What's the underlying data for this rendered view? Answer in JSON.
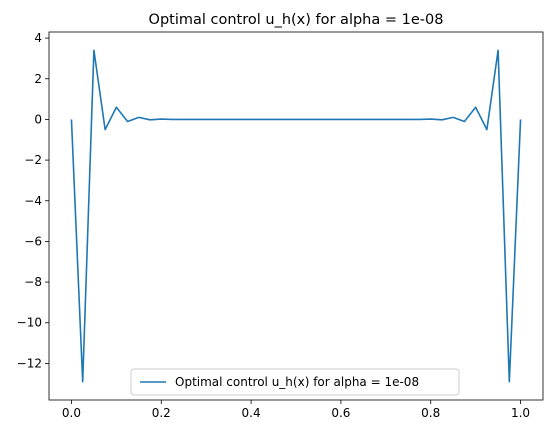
{
  "chart_data": {
    "type": "line",
    "title": "Optimal control u_h(x) for alpha = 1e-08",
    "xlabel": "",
    "ylabel": "",
    "xlim": [
      -0.05,
      1.05
    ],
    "ylim": [
      -13.8,
      4.3
    ],
    "xticks": [
      0.0,
      0.2,
      0.4,
      0.6,
      0.8,
      1.0
    ],
    "xtick_labels": [
      "0.0",
      "0.2",
      "0.4",
      "0.6",
      "0.8",
      "1.0"
    ],
    "yticks": [
      4,
      2,
      0,
      -2,
      -4,
      -6,
      -8,
      -10,
      -12
    ],
    "ytick_labels": [
      "4",
      "2",
      "0",
      "−2",
      "−4",
      "−6",
      "−8",
      "−10",
      "−12"
    ],
    "grid": false,
    "legend_position": "lower-center",
    "series": [
      {
        "name": "Optimal control u_h(x) for alpha = 1e-08",
        "color": "#1f77b4",
        "x": [
          0.0,
          0.025,
          0.05,
          0.075,
          0.1,
          0.125,
          0.15,
          0.175,
          0.2,
          0.225,
          0.25,
          0.275,
          0.3,
          0.325,
          0.35,
          0.375,
          0.4,
          0.425,
          0.45,
          0.475,
          0.5,
          0.525,
          0.55,
          0.575,
          0.6,
          0.625,
          0.65,
          0.675,
          0.7,
          0.725,
          0.75,
          0.775,
          0.8,
          0.825,
          0.85,
          0.875,
          0.9,
          0.925,
          0.95,
          0.975,
          1.0
        ],
        "y": [
          0.0,
          -12.9,
          3.4,
          -0.5,
          0.6,
          -0.1,
          0.1,
          -0.02,
          0.02,
          0.0,
          0.0,
          0.0,
          0.0,
          0.0,
          0.0,
          0.0,
          0.0,
          0.0,
          0.0,
          0.0,
          0.0,
          0.0,
          0.0,
          0.0,
          0.0,
          0.0,
          0.0,
          0.0,
          0.0,
          0.0,
          0.0,
          0.0,
          0.02,
          -0.02,
          0.1,
          -0.1,
          0.6,
          -0.5,
          3.4,
          -12.9,
          0.0
        ]
      }
    ]
  }
}
